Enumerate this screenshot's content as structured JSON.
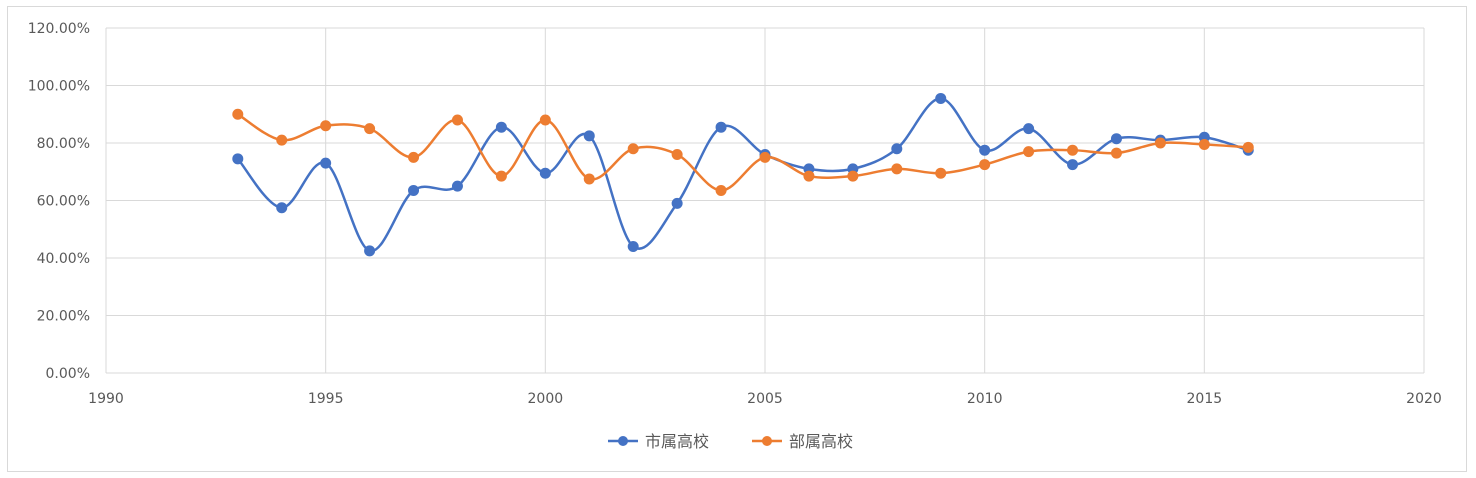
{
  "chart_data": {
    "type": "line",
    "smooth": true,
    "x": [
      1993,
      1994,
      1995,
      1996,
      1997,
      1998,
      1999,
      2000,
      2001,
      2002,
      2003,
      2004,
      2005,
      2006,
      2007,
      2008,
      2009,
      2010,
      2011,
      2012,
      2013,
      2014,
      2015,
      2016
    ],
    "series": [
      {
        "name": "市属高校",
        "color": "#4472c4",
        "values": [
          74.5,
          57.5,
          73,
          42.5,
          63.5,
          65,
          85.5,
          69.5,
          82.5,
          44,
          59,
          85.5,
          76,
          71,
          71,
          78,
          95.5,
          77.5,
          85,
          72.5,
          81.5,
          81,
          82,
          77.5
        ]
      },
      {
        "name": "部属高校",
        "color": "#ed7d31",
        "values": [
          90,
          81,
          86,
          85,
          75,
          88,
          68.5,
          88,
          67.5,
          78,
          76,
          63.5,
          75,
          68.5,
          68.5,
          71,
          69.5,
          72.5,
          77,
          77.5,
          76.5,
          80,
          79.5,
          78.5
        ]
      }
    ],
    "xlim": [
      1990,
      2020
    ],
    "ylim": [
      0,
      120
    ],
    "x_ticks": [
      "1990",
      "1995",
      "2000",
      "2005",
      "2010",
      "2015",
      "2020"
    ],
    "y_ticks": [
      "0.00%",
      "20.00%",
      "40.00%",
      "60.00%",
      "80.00%",
      "100.00%",
      "120.00%"
    ],
    "grid": true,
    "legend_position": "bottom"
  }
}
